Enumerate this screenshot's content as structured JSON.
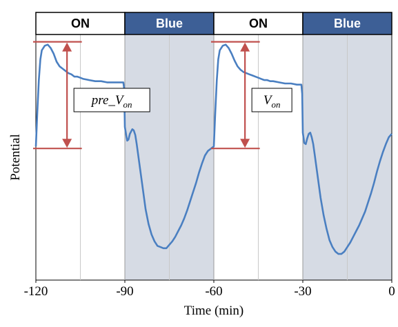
{
  "chart_data": {
    "type": "line",
    "xlabel": "Time (min)",
    "ylabel": "Potential",
    "xlim": [
      -120,
      0
    ],
    "x_ticks": [
      "-120",
      "-90",
      "-60",
      "-30",
      "0"
    ],
    "y_ticks_shown": false,
    "grid": "vertical",
    "phases": [
      {
        "label": "ON",
        "start": -120,
        "end": -90,
        "color": "#ffffff",
        "text_color": "#000000",
        "shaded": false
      },
      {
        "label": "Blue",
        "start": -90,
        "end": -60,
        "color": "#3d5f96",
        "text_color": "#ffffff",
        "shaded": true
      },
      {
        "label": "ON",
        "start": -60,
        "end": -30,
        "color": "#ffffff",
        "text_color": "#000000",
        "shaded": false
      },
      {
        "label": "Blue",
        "start": -30,
        "end": 0,
        "color": "#3d5f96",
        "text_color": "#ffffff",
        "shaded": true
      }
    ],
    "series": [
      {
        "color": "#4a7fc1",
        "points": [
          [
            -120.0,
            0.1
          ],
          [
            -119.5,
            0.4
          ],
          [
            -119.0,
            0.68
          ],
          [
            -118.5,
            0.86
          ],
          [
            -118.0,
            0.94
          ],
          [
            -117.0,
            0.98
          ],
          [
            -116.0,
            0.99
          ],
          [
            -115.0,
            0.96
          ],
          [
            -114.0,
            0.91
          ],
          [
            -113.0,
            0.84
          ],
          [
            -112.0,
            0.8
          ],
          [
            -111.0,
            0.78
          ],
          [
            -110.0,
            0.76
          ],
          [
            -109.0,
            0.74
          ],
          [
            -108.0,
            0.73
          ],
          [
            -107.0,
            0.71
          ],
          [
            -106.0,
            0.71
          ],
          [
            -105.0,
            0.7
          ],
          [
            -104.0,
            0.69
          ],
          [
            -102.0,
            0.68
          ],
          [
            -100.0,
            0.67
          ],
          [
            -98.0,
            0.67
          ],
          [
            -96.0,
            0.66
          ],
          [
            -94.0,
            0.66
          ],
          [
            -92.0,
            0.66
          ],
          [
            -90.5,
            0.66
          ],
          [
            -90.2,
            0.6
          ],
          [
            -90.0,
            0.27
          ],
          [
            -89.5,
            0.19
          ],
          [
            -89.2,
            0.15
          ],
          [
            -88.8,
            0.16
          ],
          [
            -88.3,
            0.21
          ],
          [
            -87.5,
            0.25
          ],
          [
            -87.0,
            0.24
          ],
          [
            -86.5,
            0.2
          ],
          [
            -86.0,
            0.12
          ],
          [
            -85.0,
            -0.07
          ],
          [
            -84.0,
            -0.26
          ],
          [
            -83.0,
            -0.45
          ],
          [
            -82.0,
            -0.58
          ],
          [
            -81.0,
            -0.67
          ],
          [
            -80.0,
            -0.73
          ],
          [
            -79.0,
            -0.77
          ],
          [
            -78.0,
            -0.78
          ],
          [
            -77.0,
            -0.79
          ],
          [
            -76.0,
            -0.79
          ],
          [
            -75.0,
            -0.76
          ],
          [
            -74.0,
            -0.73
          ],
          [
            -73.0,
            -0.69
          ],
          [
            -72.0,
            -0.64
          ],
          [
            -71.0,
            -0.59
          ],
          [
            -70.0,
            -0.53
          ],
          [
            -69.0,
            -0.46
          ],
          [
            -68.0,
            -0.38
          ],
          [
            -67.0,
            -0.3
          ],
          [
            -66.0,
            -0.22
          ],
          [
            -65.0,
            -0.13
          ],
          [
            -64.0,
            -0.05
          ],
          [
            -63.0,
            0.02
          ],
          [
            -62.0,
            0.06
          ],
          [
            -61.0,
            0.08
          ],
          [
            -60.0,
            0.1
          ],
          [
            -59.5,
            0.4
          ],
          [
            -59.0,
            0.68
          ],
          [
            -58.5,
            0.86
          ],
          [
            -58.0,
            0.94
          ],
          [
            -57.0,
            0.98
          ],
          [
            -56.0,
            0.99
          ],
          [
            -55.0,
            0.96
          ],
          [
            -54.0,
            0.91
          ],
          [
            -53.0,
            0.85
          ],
          [
            -52.0,
            0.8
          ],
          [
            -51.0,
            0.77
          ],
          [
            -50.0,
            0.75
          ],
          [
            -49.0,
            0.74
          ],
          [
            -48.0,
            0.73
          ],
          [
            -47.0,
            0.72
          ],
          [
            -46.0,
            0.71
          ],
          [
            -45.0,
            0.7
          ],
          [
            -44.0,
            0.69
          ],
          [
            -43.0,
            0.68
          ],
          [
            -42.0,
            0.68
          ],
          [
            -41.0,
            0.67
          ],
          [
            -40.0,
            0.67
          ],
          [
            -38.0,
            0.66
          ],
          [
            -36.0,
            0.65
          ],
          [
            -34.0,
            0.65
          ],
          [
            -32.0,
            0.64
          ],
          [
            -30.5,
            0.64
          ],
          [
            -30.2,
            0.56
          ],
          [
            -30.0,
            0.22
          ],
          [
            -29.5,
            0.13
          ],
          [
            -29.0,
            0.12
          ],
          [
            -28.5,
            0.17
          ],
          [
            -28.0,
            0.21
          ],
          [
            -27.5,
            0.22
          ],
          [
            -27.0,
            0.18
          ],
          [
            -26.5,
            0.12
          ],
          [
            -26.0,
            0.03
          ],
          [
            -25.0,
            -0.16
          ],
          [
            -24.0,
            -0.35
          ],
          [
            -23.0,
            -0.5
          ],
          [
            -22.0,
            -0.62
          ],
          [
            -21.0,
            -0.72
          ],
          [
            -20.0,
            -0.78
          ],
          [
            -19.0,
            -0.82
          ],
          [
            -18.0,
            -0.84
          ],
          [
            -17.0,
            -0.84
          ],
          [
            -16.0,
            -0.82
          ],
          [
            -15.0,
            -0.78
          ],
          [
            -14.0,
            -0.74
          ],
          [
            -13.0,
            -0.69
          ],
          [
            -12.0,
            -0.64
          ],
          [
            -11.0,
            -0.59
          ],
          [
            -10.0,
            -0.53
          ],
          [
            -9.0,
            -0.47
          ],
          [
            -8.0,
            -0.39
          ],
          [
            -7.0,
            -0.31
          ],
          [
            -6.0,
            -0.22
          ],
          [
            -5.0,
            -0.12
          ],
          [
            -4.0,
            -0.03
          ],
          [
            -3.0,
            0.05
          ],
          [
            -2.0,
            0.12
          ],
          [
            -1.0,
            0.18
          ],
          [
            0.0,
            0.21
          ]
        ]
      }
    ],
    "annotations": [
      {
        "label": "pre_",
        "sub": "on",
        "base": "V",
        "x_start": -120,
        "top": 0.99,
        "bottom": 0.1,
        "color": "#c0504d"
      },
      {
        "label": "",
        "sub": "on",
        "base": "V",
        "x_start": -60,
        "top": 0.99,
        "bottom": 0.1,
        "color": "#c0504d"
      }
    ]
  }
}
